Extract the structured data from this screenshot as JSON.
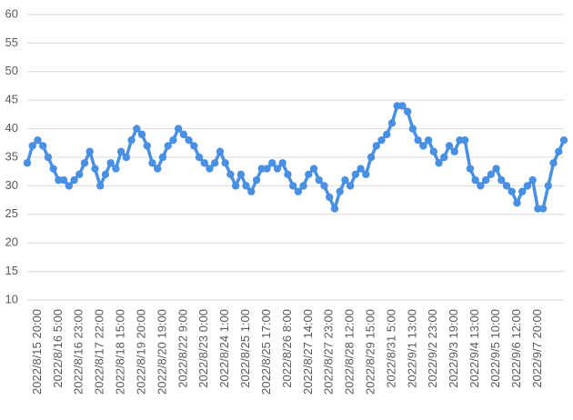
{
  "chart_data": {
    "type": "line",
    "categories": [
      null,
      null,
      "2022/8/15 20:00",
      null,
      null,
      null,
      "2022/8/16 5:00",
      null,
      null,
      null,
      "2022/8/16 23:00",
      null,
      null,
      null,
      "2022/8/17 22:00",
      null,
      null,
      null,
      "2022/8/18 15:00",
      null,
      null,
      null,
      "2022/8/19 20:00",
      null,
      null,
      null,
      "2022/8/20 19:00",
      null,
      null,
      null,
      "2022/8/22 9:00",
      null,
      null,
      null,
      "2022/8/23 0:00",
      null,
      null,
      null,
      "2022/8/24 1:00",
      null,
      null,
      null,
      "2022/8/25 1:00",
      null,
      null,
      null,
      "2022/8/25 17:00",
      null,
      null,
      null,
      "2022/8/26 8:00",
      null,
      null,
      null,
      "2022/8/27 14:00",
      null,
      null,
      null,
      "2022/8/27 23:00",
      null,
      null,
      null,
      "2022/8/28 12:00",
      null,
      null,
      null,
      "2022/8/29 15:00",
      null,
      null,
      null,
      "2022/8/31 5:00",
      null,
      null,
      null,
      "2022/9/1 13:00",
      null,
      null,
      null,
      "2022/9/2 23:00",
      null,
      null,
      null,
      "2022/9/3 19:00",
      null,
      null,
      null,
      "2022/9/4 13:00",
      null,
      null,
      null,
      "2022/9/5 10:00",
      null,
      null,
      null,
      "2022/9/6 12:00",
      null,
      null,
      null,
      "2022/9/7 20:00",
      null,
      null,
      null,
      null,
      null
    ],
    "values": [
      34,
      37,
      38,
      37,
      35,
      33,
      31,
      31,
      30,
      31,
      32,
      34,
      36,
      33,
      30,
      32,
      34,
      33,
      36,
      35,
      38,
      40,
      39,
      37,
      34,
      33,
      35,
      37,
      38,
      40,
      39,
      38,
      37,
      35,
      34,
      33,
      34,
      36,
      34,
      32,
      30,
      32,
      30,
      29,
      31,
      33,
      33,
      34,
      33,
      34,
      32,
      30,
      29,
      30,
      32,
      33,
      31,
      30,
      28,
      26,
      29,
      31,
      30,
      32,
      33,
      32,
      35,
      37,
      38,
      39,
      41,
      44,
      44,
      43,
      40,
      38,
      37,
      38,
      36,
      34,
      35,
      37,
      36,
      38,
      38,
      33,
      31,
      30,
      31,
      32,
      33,
      31,
      30,
      29,
      27,
      29,
      30,
      31,
      26,
      26,
      30,
      34,
      36,
      38
    ],
    "color": "#4a90e2",
    "ylim": [
      10,
      60
    ],
    "yticks": [
      10,
      15,
      20,
      25,
      30,
      35,
      40,
      45,
      50,
      55,
      60
    ],
    "grid": true
  }
}
